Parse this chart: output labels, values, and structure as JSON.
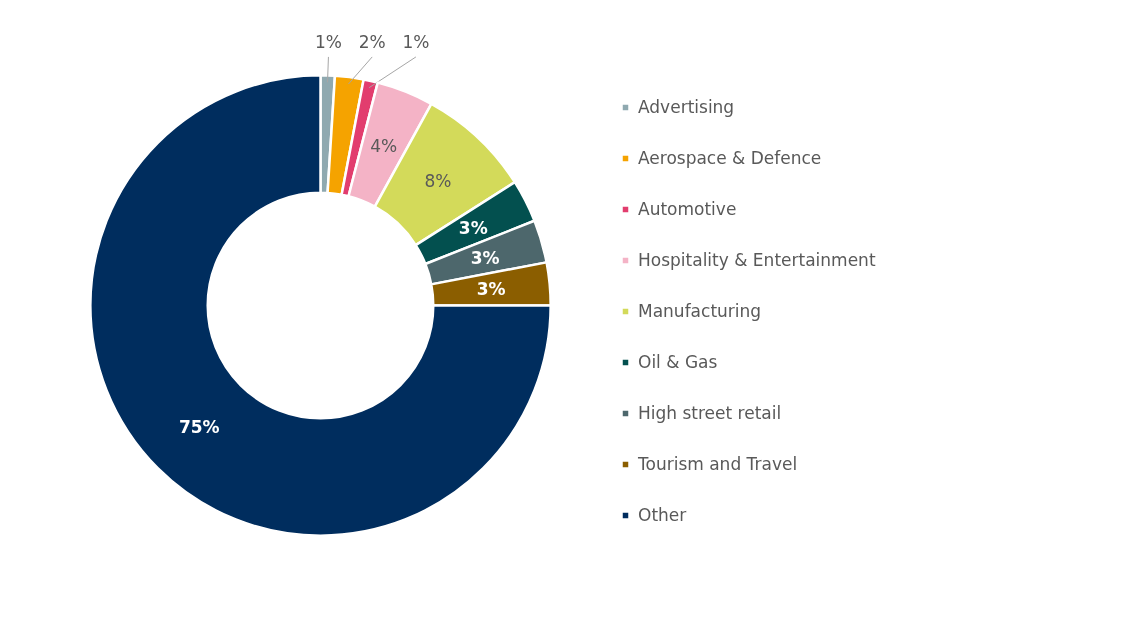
{
  "chart_data": {
    "type": "donut",
    "categories": [
      "Advertising",
      "Aerospace & Defence",
      "Automotive",
      "Hospitality & Entertainment",
      "Manufacturing",
      "Oil & Gas",
      "High street retail",
      "Tourism and Travel",
      "Other"
    ],
    "values": [
      1,
      2,
      1,
      4,
      8,
      3,
      3,
      3,
      75
    ],
    "colors": [
      "#8fa9b0",
      "#f5a300",
      "#e23d6e",
      "#f4b3c6",
      "#d3da5a",
      "#03504f",
      "#4d676c",
      "#8b5e00",
      "#002d5e"
    ],
    "value_labels": [
      "1%",
      "2%",
      "1%",
      "4%",
      "8%",
      "3%",
      "3%",
      "3%",
      "75%"
    ],
    "legend": "right"
  }
}
